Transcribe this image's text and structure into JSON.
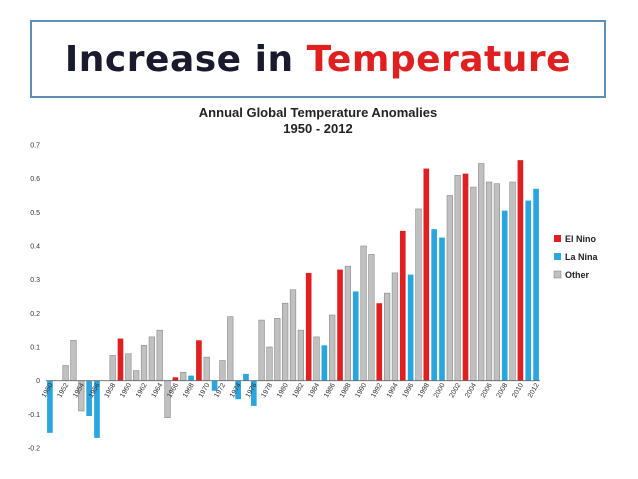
{
  "slide": {
    "title_main": "Increase in ",
    "title_accent": "Temperature"
  },
  "colors": {
    "el_nino": "#e02020",
    "la_nina": "#29a5df",
    "other": "#c0c0c0",
    "frame": "#5b8fb5"
  },
  "chart_data": {
    "type": "bar",
    "title": "Annual Global Temperature Anomalies",
    "subtitle": "1950 - 2012",
    "xlabel": "",
    "ylabel": "",
    "ylim": [
      -0.2,
      0.7
    ],
    "yticks": [
      -0.2,
      -0.1,
      0,
      0.1,
      0.2,
      0.3,
      0.4,
      0.5,
      0.6,
      0.7
    ],
    "grid": false,
    "legend_position": "right",
    "legend": [
      {
        "name": "El Nino",
        "key": "E"
      },
      {
        "name": "La Nina",
        "key": "L"
      },
      {
        "name": "Other",
        "key": "O"
      }
    ],
    "x_tick_labels": [
      "1950",
      "1952",
      "1954",
      "1956",
      "1958",
      "1960",
      "1962",
      "1964",
      "1966",
      "1968",
      "1970",
      "1972",
      "1974",
      "1976",
      "1978",
      "1980",
      "1982",
      "1984",
      "1986",
      "1988",
      "1990",
      "1992",
      "1994",
      "1996",
      "1998",
      "2000",
      "2002",
      "2004",
      "2006",
      "2008",
      "2010",
      "2012"
    ],
    "categories": [
      "1950",
      "1951",
      "1952",
      "1953",
      "1954",
      "1955",
      "1956",
      "1957",
      "1958",
      "1959",
      "1960",
      "1961",
      "1962",
      "1963",
      "1964",
      "1965",
      "1966",
      "1967",
      "1968",
      "1969",
      "1970",
      "1971",
      "1972",
      "1973",
      "1974",
      "1975",
      "1976",
      "1977",
      "1978",
      "1979",
      "1980",
      "1981",
      "1982",
      "1983",
      "1984",
      "1985",
      "1986",
      "1987",
      "1988",
      "1989",
      "1990",
      "1991",
      "1992",
      "1993",
      "1994",
      "1995",
      "1996",
      "1997",
      "1998",
      "1999",
      "2000",
      "2001",
      "2002",
      "2003",
      "2004",
      "2005",
      "2006",
      "2007",
      "2008",
      "2009",
      "2010",
      "2011",
      "2012"
    ],
    "values": [
      -0.155,
      0,
      0.045,
      0.12,
      -0.09,
      -0.105,
      -0.17,
      0,
      0.075,
      0.125,
      0.08,
      0.03,
      0.105,
      0.13,
      0.15,
      -0.11,
      0.01,
      0.025,
      0.015,
      0.12,
      0.07,
      -0.03,
      0.06,
      0.19,
      -0.055,
      0.02,
      -0.075,
      0.18,
      0.1,
      0.185,
      0.23,
      0.27,
      0.15,
      0.32,
      0.13,
      0.105,
      0.195,
      0.33,
      0.34,
      0.265,
      0.4,
      0.375,
      0.23,
      0.26,
      0.32,
      0.445,
      0.315,
      0.51,
      0.63,
      0.45,
      0.425,
      0.55,
      0.61,
      0.615,
      0.575,
      0.645,
      0.59,
      0.585,
      0.505,
      0.59,
      0.655,
      0.535,
      0.57
    ],
    "types": [
      "L",
      "O",
      "O",
      "O",
      "O",
      "L",
      "L",
      "O",
      "O",
      "E",
      "O",
      "O",
      "O",
      "O",
      "O",
      "O",
      "E",
      "O",
      "L",
      "E",
      "O",
      "L",
      "O",
      "O",
      "L",
      "L",
      "L",
      "O",
      "O",
      "O",
      "O",
      "O",
      "O",
      "E",
      "O",
      "L",
      "O",
      "E",
      "O",
      "L",
      "O",
      "O",
      "E",
      "O",
      "O",
      "E",
      "L",
      "O",
      "E",
      "L",
      "L",
      "O",
      "O",
      "E",
      "O",
      "O",
      "O",
      "O",
      "L",
      "O",
      "E",
      "L",
      "L"
    ]
  }
}
